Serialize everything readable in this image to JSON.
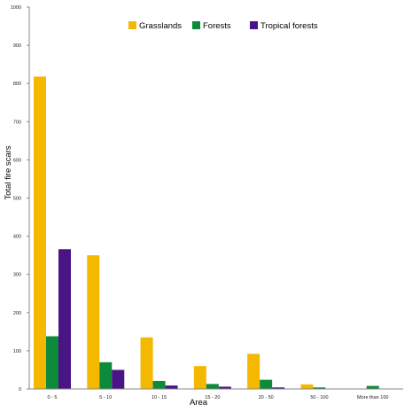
{
  "chart_data": {
    "type": "bar",
    "title": "",
    "xlabel": "Area",
    "ylabel": "Total fire scars",
    "ylim": [
      0,
      1000
    ],
    "yticks": [
      0,
      100,
      200,
      300,
      400,
      500,
      600,
      700,
      800,
      900,
      1000
    ],
    "grid": false,
    "legend_position": "top",
    "categories": [
      "0 - 5",
      "5 - 10",
      "10 - 15",
      "15 - 20",
      "20 - 50",
      "50 - 100",
      "More than 100"
    ],
    "series": [
      {
        "name": "Grasslands",
        "color": "#F5B800",
        "values": [
          818,
          350,
          135,
          60,
          92,
          12,
          0
        ]
      },
      {
        "name": "Forests",
        "color": "#0D8A3A",
        "values": [
          138,
          70,
          21,
          13,
          24,
          4,
          8
        ]
      },
      {
        "name": "Tropical forests",
        "color": "#4A1487",
        "values": [
          366,
          50,
          9,
          6,
          4,
          0,
          0
        ]
      }
    ]
  }
}
